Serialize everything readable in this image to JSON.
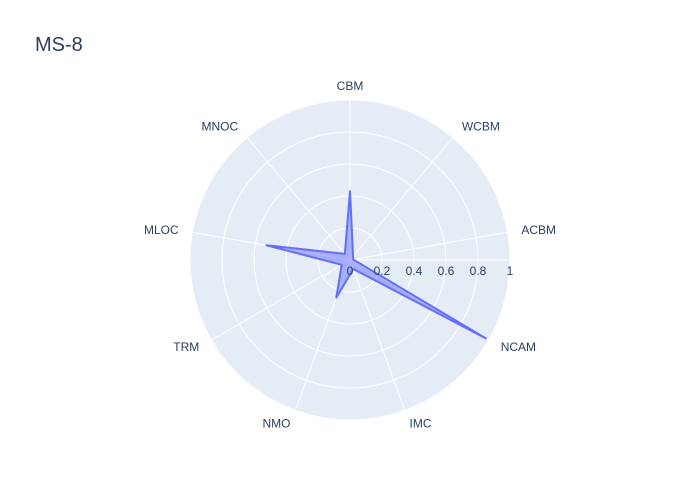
{
  "chart_data": {
    "type": "radar",
    "title": "MS-8",
    "categories": [
      "CBM",
      "WCBM",
      "ACBM",
      "NCAM",
      "IMC",
      "NMO",
      "TRM",
      "MLOC",
      "MNOC"
    ],
    "series": [
      {
        "values": [
          0.43,
          0.03,
          0.02,
          0.98,
          0.06,
          0.25,
          0.06,
          0.53,
          0.05
        ]
      }
    ],
    "radial_axis": {
      "range": [
        0,
        1
      ],
      "tick_labels": [
        "0",
        "0.2",
        "0.4",
        "0.6",
        "0.8",
        "1"
      ],
      "tick_values": [
        0,
        0.2,
        0.4,
        0.6,
        0.8,
        1
      ]
    },
    "grid": true,
    "legend": "none",
    "colors": {
      "line": "#636efa",
      "fill": "rgba(99,110,250,0.5)",
      "plot_bg": "#e5ecf6",
      "grid": "#ffffff",
      "text": "#2a3f5f"
    }
  }
}
